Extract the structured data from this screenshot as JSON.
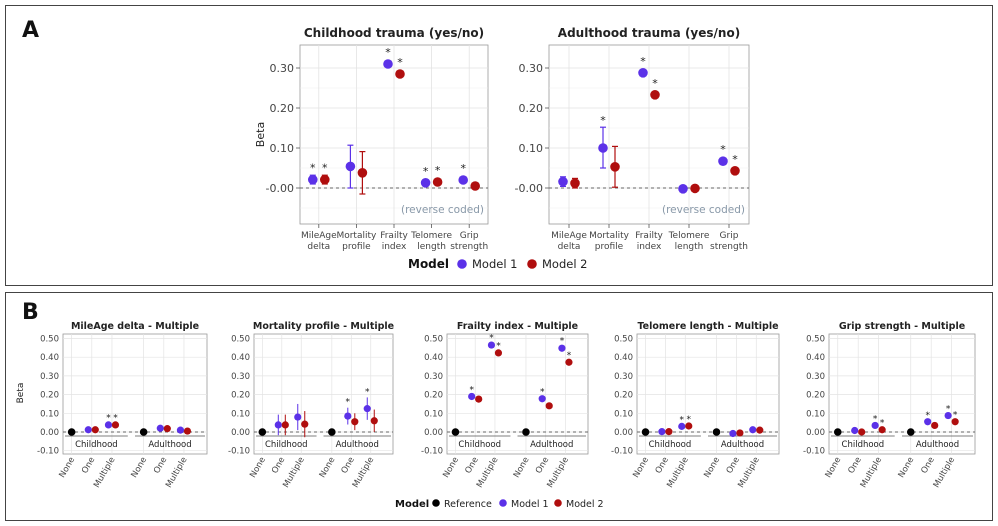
{
  "panel_labels": {
    "a": "A",
    "b": "B"
  },
  "colors": {
    "model1": "#5b31e8",
    "model2": "#b00e0e",
    "reference": "#000000"
  },
  "legend_a": {
    "title": "Model",
    "items": [
      "Model 1",
      "Model 2"
    ]
  },
  "legend_b": {
    "title": "Model",
    "items": [
      "Reference",
      "Model 1",
      "Model 2"
    ]
  },
  "chart_data": [
    {
      "type": "scatter",
      "subtype": "point-range (coefficient plot)",
      "title": "Childhood trauma (yes/no)",
      "ylabel": "Beta",
      "ylim": [
        -0.08,
        0.35
      ],
      "yticks": [
        "-0.00",
        "0.10",
        "0.20",
        "0.30"
      ],
      "ytick_values": [
        0,
        0.1,
        0.2,
        0.3
      ],
      "categories": [
        "MileAge\ndelta",
        "Mortality\nprofile",
        "Frailty\nindex",
        "Telomere\nlength",
        "Grip\nstrength"
      ],
      "annotation": "(reverse coded)",
      "series": [
        {
          "name": "Model 1",
          "values": [
            0.021,
            0.054,
            0.31,
            0.013,
            0.02
          ],
          "lower": [
            0.01,
            0.0,
            0.305,
            0.006,
            0.014
          ],
          "upper": [
            0.032,
            0.107,
            0.315,
            0.02,
            0.026
          ],
          "significant": [
            true,
            false,
            true,
            true,
            true
          ]
        },
        {
          "name": "Model 2",
          "values": [
            0.021,
            0.038,
            0.285,
            0.015,
            0.005
          ],
          "lower": [
            0.01,
            -0.015,
            0.28,
            0.008,
            0.0
          ],
          "upper": [
            0.032,
            0.091,
            0.29,
            0.022,
            0.01
          ],
          "significant": [
            true,
            false,
            true,
            true,
            false
          ]
        }
      ]
    },
    {
      "type": "scatter",
      "subtype": "point-range (coefficient plot)",
      "title": "Adulthood trauma (yes/no)",
      "ylabel": "",
      "ylim": [
        -0.08,
        0.35
      ],
      "yticks": [
        "-0.00",
        "0.10",
        "0.20",
        "0.30"
      ],
      "ytick_values": [
        0,
        0.1,
        0.2,
        0.3
      ],
      "categories": [
        "MileAge\ndelta",
        "Mortality\nprofile",
        "Frailty\nindex",
        "Telomere\nlength",
        "Grip\nstrength"
      ],
      "annotation": "(reverse coded)",
      "series": [
        {
          "name": "Model 1",
          "values": [
            0.016,
            0.1,
            0.288,
            -0.002,
            0.067
          ],
          "lower": [
            0.004,
            0.05,
            0.282,
            -0.006,
            0.06
          ],
          "upper": [
            0.028,
            0.152,
            0.294,
            0.002,
            0.074
          ],
          "significant": [
            false,
            true,
            true,
            false,
            true
          ]
        },
        {
          "name": "Model 2",
          "values": [
            0.012,
            0.053,
            0.233,
            -0.001,
            0.043
          ],
          "lower": [
            0.0,
            0.002,
            0.227,
            -0.005,
            0.036
          ],
          "upper": [
            0.024,
            0.104,
            0.239,
            0.003,
            0.05
          ],
          "significant": [
            false,
            false,
            true,
            false,
            true
          ]
        }
      ]
    },
    {
      "type": "scatter",
      "subtype": "point-range faceted",
      "title": "MileAge delta - Multiple",
      "ylabel": "Beta",
      "ylim": [
        -0.12,
        0.52
      ],
      "yticks": [
        "0.50",
        "0.40",
        "0.30",
        "0.20",
        "0.10",
        "0.00",
        "-0.10"
      ],
      "ytick_values": [
        0.5,
        0.4,
        0.3,
        0.2,
        0.1,
        0.0,
        -0.1
      ],
      "groups": [
        "Childhood",
        "Adulthood"
      ],
      "x": [
        "None",
        "One",
        "Multiple"
      ],
      "reference": [
        0,
        0
      ],
      "series": [
        {
          "name": "Model 1",
          "values": [
            [
              0.012,
              0.038
            ],
            [
              0.02,
              0.01
            ]
          ],
          "err": [
            [
              0.005,
              0.007
            ],
            [
              0.005,
              0.005
            ]
          ],
          "significant": [
            [
              false,
              true
            ],
            [
              false,
              false
            ]
          ]
        },
        {
          "name": "Model 2",
          "values": [
            [
              0.012,
              0.038
            ],
            [
              0.018,
              0.005
            ]
          ],
          "err": [
            [
              0.005,
              0.007
            ],
            [
              0.005,
              0.005
            ]
          ],
          "significant": [
            [
              false,
              true
            ],
            [
              false,
              false
            ]
          ]
        }
      ]
    },
    {
      "type": "scatter",
      "subtype": "point-range faceted",
      "title": "Mortality profile - Multiple",
      "ylabel": "",
      "ylim": [
        -0.12,
        0.52
      ],
      "yticks": [
        "0.50",
        "0.40",
        "0.30",
        "0.20",
        "0.10",
        "0.00",
        "-0.10"
      ],
      "ytick_values": [
        0.5,
        0.4,
        0.3,
        0.2,
        0.1,
        0.0,
        -0.1
      ],
      "groups": [
        "Childhood",
        "Adulthood"
      ],
      "x": [
        "None",
        "One",
        "Multiple"
      ],
      "reference": [
        0,
        0
      ],
      "series": [
        {
          "name": "Model 1",
          "values": [
            [
              0.038,
              0.08
            ],
            [
              0.085,
              0.125
            ]
          ],
          "err": [
            [
              0.055,
              0.07
            ],
            [
              0.045,
              0.06
            ]
          ],
          "significant": [
            [
              false,
              false
            ],
            [
              true,
              true
            ]
          ]
        },
        {
          "name": "Model 2",
          "values": [
            [
              0.038,
              0.042
            ],
            [
              0.055,
              0.06
            ]
          ],
          "err": [
            [
              0.055,
              0.07
            ],
            [
              0.045,
              0.06
            ]
          ],
          "significant": [
            [
              false,
              false
            ],
            [
              false,
              false
            ]
          ]
        }
      ]
    },
    {
      "type": "scatter",
      "subtype": "point-range faceted",
      "title": "Frailty index - Multiple",
      "ylabel": "",
      "ylim": [
        -0.12,
        0.52
      ],
      "yticks": [
        "0.50",
        "0.40",
        "0.30",
        "0.20",
        "0.10",
        "0.00",
        "-0.10"
      ],
      "ytick_values": [
        0.5,
        0.4,
        0.3,
        0.2,
        0.1,
        0.0,
        -0.1
      ],
      "groups": [
        "Childhood",
        "Adulthood"
      ],
      "x": [
        "None",
        "One",
        "Multiple"
      ],
      "reference": [
        0,
        0
      ],
      "series": [
        {
          "name": "Model 1",
          "values": [
            [
              0.19,
              0.465
            ],
            [
              0.178,
              0.448
            ]
          ],
          "err": [
            [
              0.006,
              0.008
            ],
            [
              0.006,
              0.008
            ]
          ],
          "significant": [
            [
              true,
              true
            ],
            [
              true,
              true
            ]
          ]
        },
        {
          "name": "Model 2",
          "values": [
            [
              0.176,
              0.423
            ],
            [
              0.14,
              0.373
            ]
          ],
          "err": [
            [
              0.006,
              0.008
            ],
            [
              0.006,
              0.008
            ]
          ],
          "significant": [
            [
              false,
              true
            ],
            [
              false,
              true
            ]
          ]
        }
      ]
    },
    {
      "type": "scatter",
      "subtype": "point-range faceted",
      "title": "Telomere length - Multiple",
      "ylabel": "",
      "ylim": [
        -0.12,
        0.52
      ],
      "yticks": [
        "0.50",
        "0.40",
        "0.30",
        "0.20",
        "0.10",
        "0.00",
        "-0.10"
      ],
      "ytick_values": [
        0.5,
        0.4,
        0.3,
        0.2,
        0.1,
        0.0,
        -0.1
      ],
      "groups": [
        "Childhood",
        "Adulthood"
      ],
      "x": [
        "None",
        "One",
        "Multiple"
      ],
      "reference": [
        0,
        0
      ],
      "series": [
        {
          "name": "Model 1",
          "values": [
            [
              0.002,
              0.03
            ],
            [
              -0.008,
              0.012
            ]
          ],
          "err": [
            [
              0.005,
              0.006
            ],
            [
              0.005,
              0.006
            ]
          ],
          "significant": [
            [
              false,
              true
            ],
            [
              false,
              false
            ]
          ]
        },
        {
          "name": "Model 2",
          "values": [
            [
              0.002,
              0.032
            ],
            [
              -0.005,
              0.01
            ]
          ],
          "err": [
            [
              0.005,
              0.006
            ],
            [
              0.005,
              0.006
            ]
          ],
          "significant": [
            [
              false,
              true
            ],
            [
              false,
              false
            ]
          ]
        }
      ]
    },
    {
      "type": "scatter",
      "subtype": "point-range faceted",
      "title": "Grip strength - Multiple",
      "ylabel": "",
      "ylim": [
        -0.12,
        0.52
      ],
      "yticks": [
        "0.50",
        "0.40",
        "0.30",
        "0.20",
        "0.10",
        "0.00",
        "-0.10"
      ],
      "ytick_values": [
        0.5,
        0.4,
        0.3,
        0.2,
        0.1,
        0.0,
        -0.1
      ],
      "groups": [
        "Childhood",
        "Adulthood"
      ],
      "x": [
        "None",
        "One",
        "Multiple"
      ],
      "reference": [
        0,
        0
      ],
      "series": [
        {
          "name": "Model 1",
          "values": [
            [
              0.008,
              0.035
            ],
            [
              0.055,
              0.088
            ]
          ],
          "err": [
            [
              0.005,
              0.006
            ],
            [
              0.005,
              0.006
            ]
          ],
          "significant": [
            [
              false,
              true
            ],
            [
              true,
              true
            ]
          ]
        },
        {
          "name": "Model 2",
          "values": [
            [
              0.0,
              0.012
            ],
            [
              0.035,
              0.055
            ]
          ],
          "err": [
            [
              0.005,
              0.006
            ],
            [
              0.005,
              0.006
            ]
          ],
          "significant": [
            [
              false,
              true
            ],
            [
              false,
              true
            ]
          ]
        }
      ]
    }
  ]
}
